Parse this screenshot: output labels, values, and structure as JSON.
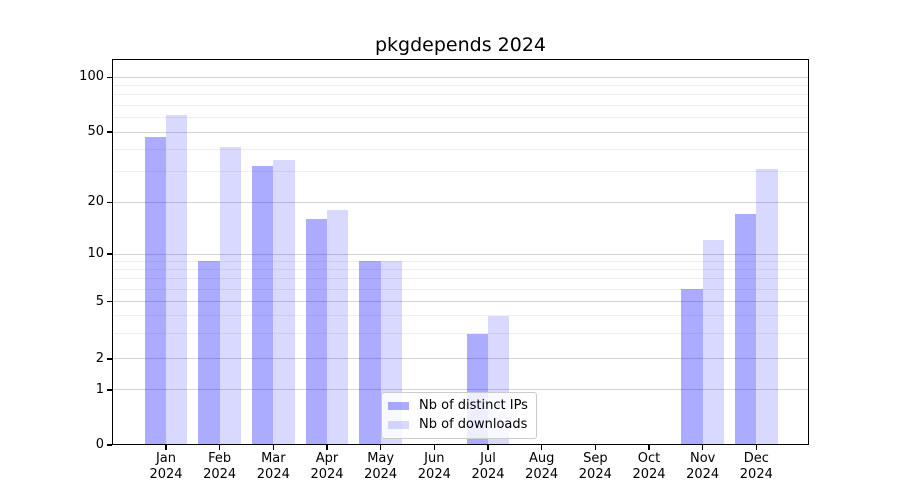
{
  "title": "pkgdepends 2024",
  "chart_data": {
    "type": "bar",
    "title": "pkgdepends 2024",
    "categories": [
      "Jan",
      "Feb",
      "Mar",
      "Apr",
      "May",
      "Jun",
      "Jul",
      "Aug",
      "Sep",
      "Oct",
      "Nov",
      "Dec"
    ],
    "year_label": "2024",
    "series": [
      {
        "name": "Nb of distinct IPs",
        "fill": "rgba(0,0,255,0.33)",
        "hex_on_white": "#aaaaff",
        "values": [
          47,
          9,
          32,
          16,
          9,
          0,
          3,
          0,
          0,
          0,
          6,
          17
        ]
      },
      {
        "name": "Nb of downloads",
        "fill": "rgba(0,0,255,0.15)",
        "hex_on_white": "#d9d9ff",
        "values": [
          62,
          41,
          35,
          18,
          9,
          0,
          4,
          0,
          0,
          0,
          12,
          31
        ]
      }
    ],
    "y_axis": {
      "scale": "symlog",
      "major_ticks": [
        0,
        1,
        2,
        5,
        10,
        20,
        50,
        100
      ],
      "minor_ticks": [
        3,
        4,
        6,
        7,
        8,
        9,
        30,
        40,
        60,
        70,
        80,
        90
      ],
      "ylim_bottom": 0
    },
    "x_axis": {
      "tick_label_lines": 2
    },
    "grid": true,
    "legend_position": "lower center"
  }
}
